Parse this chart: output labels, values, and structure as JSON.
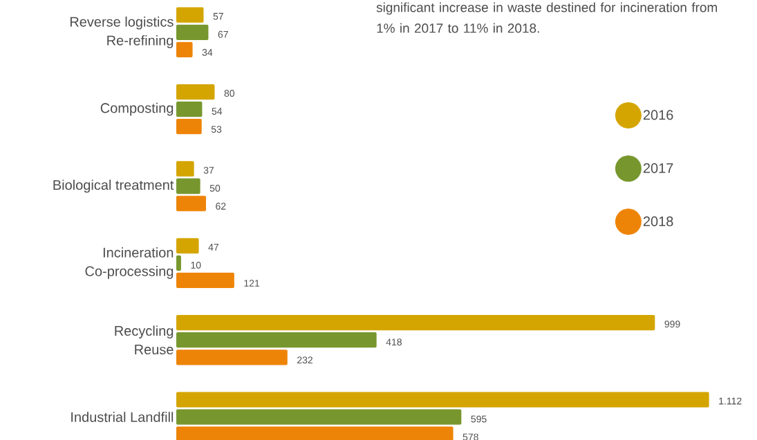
{
  "chart_data": {
    "type": "bar",
    "orientation": "horizontal",
    "annotations": [
      "significant increase in waste destined for incineration from 1% in 2017 to 11% in 2018."
    ],
    "categories": [
      "Reverse logistics\nRe-refining",
      "Composting",
      "Biological treatment",
      "Incineration\nCo-processing",
      "Recycling\nReuse",
      "Industrial Landfill"
    ],
    "series": [
      {
        "name": "2016",
        "color": "#d4a500",
        "values": [
          57,
          80,
          37,
          47,
          999,
          1112
        ],
        "value_labels": [
          "57",
          "80",
          "37",
          "47",
          "999",
          "1.112"
        ]
      },
      {
        "name": "2017",
        "color": "#77972e",
        "values": [
          67,
          54,
          50,
          10,
          418,
          595
        ],
        "value_labels": [
          "67",
          "54",
          "50",
          "10",
          "418",
          "595"
        ]
      },
      {
        "name": "2018",
        "color": "#ee8407",
        "values": [
          34,
          53,
          62,
          121,
          232,
          578
        ],
        "value_labels": [
          "34",
          "53",
          "62",
          "121",
          "232",
          "578"
        ]
      }
    ],
    "legend": "right"
  }
}
